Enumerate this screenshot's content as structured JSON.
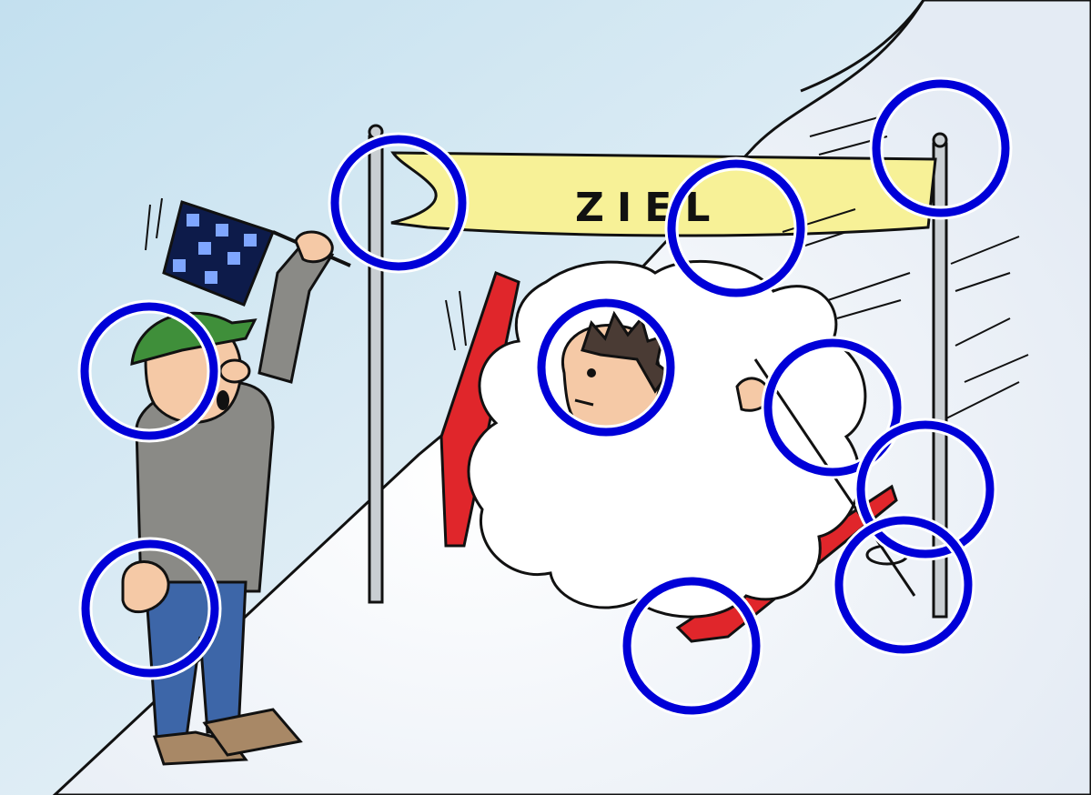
{
  "banner": {
    "text": "ZIEL"
  },
  "colors": {
    "sky": "#cfe6f2",
    "snow": "#ffffff",
    "banner": "#f7f197",
    "flag_pole": "#c9ced2",
    "ski": "#e0262b",
    "marker": "#0000d8",
    "cap": "#3f8f3a",
    "shirt": "#8a8a86",
    "jeans": "#3d66a8",
    "shoes": "#a88866"
  },
  "markers": {
    "count": 10,
    "icon": "circle-outline-marker"
  }
}
